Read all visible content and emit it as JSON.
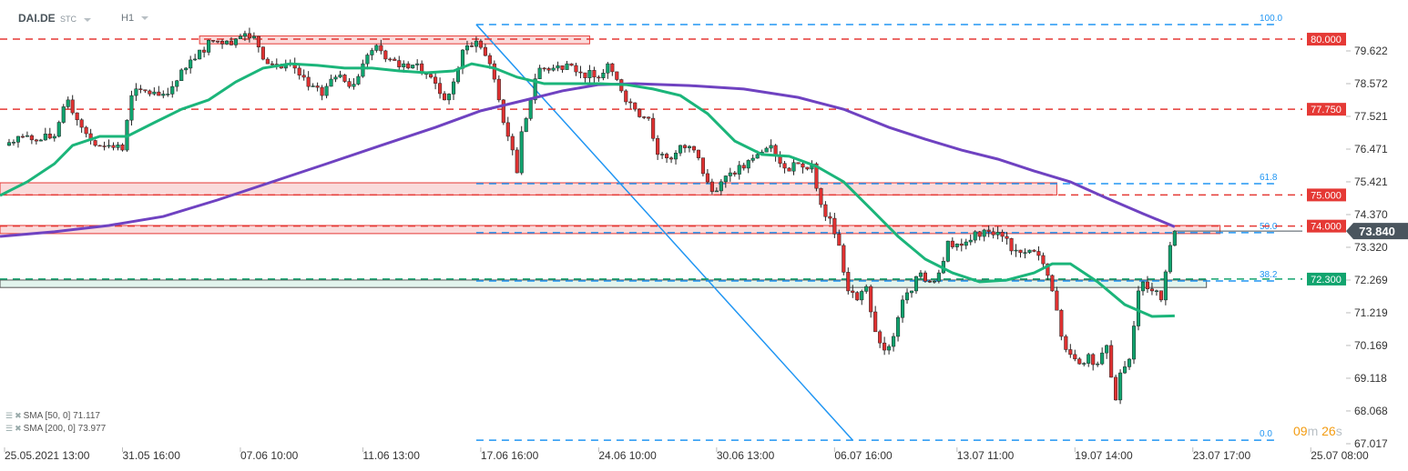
{
  "header": {
    "symbol": "DAI.DE",
    "type": "STC",
    "timeframe": "H1"
  },
  "timer": {
    "minutes": "09",
    "m": "m",
    "seconds": "26",
    "s": "s"
  },
  "legend": [
    {
      "label": "SMA [50,  0] 71.117",
      "color": "#1bb57a"
    },
    {
      "label": "SMA [200,  0] 73.977",
      "color": "#6f42c1"
    }
  ],
  "colors": {
    "up": "#10a36e",
    "down": "#e03131",
    "sma50": "#1bb57a",
    "sma200": "#6f42c1",
    "fib": "#2196f3",
    "resistance": "#e53935",
    "support": "#12a46e",
    "price_label": "#4a555e"
  },
  "chart_data": {
    "type": "candlestick",
    "x_unit": "bar (H1)",
    "ylim": [
      67.017,
      80.8
    ],
    "y_ticks": [
      "79.622",
      "78.572",
      "77.521",
      "76.471",
      "75.421",
      "74.370",
      "73.320",
      "72.269",
      "71.219",
      "70.169",
      "69.118",
      "68.068",
      "67.017"
    ],
    "x_ticks": [
      {
        "bar": 1,
        "label": "25.05.2021  13:00"
      },
      {
        "bar": 27,
        "label": "31.05  16:00"
      },
      {
        "bar": 53,
        "label": "07.06  10:00"
      },
      {
        "bar": 80,
        "label": "11.06  13:00"
      },
      {
        "bar": 106,
        "label": "17.06  16:00"
      },
      {
        "bar": 132,
        "label": "24.06  10:00"
      },
      {
        "bar": 158,
        "label": "30.06  13:00"
      },
      {
        "bar": 184,
        "label": "06.07  16:00"
      },
      {
        "bar": 211,
        "label": "13.07  11:00"
      },
      {
        "bar": 237,
        "label": "19.07  14:00"
      },
      {
        "bar": 263,
        "label": "23.07  17:00"
      },
      {
        "bar": 289,
        "label": "25.07  08:00"
      }
    ],
    "close_path": [
      [
        1,
        76.59
      ],
      [
        4,
        76.88
      ],
      [
        8,
        76.73
      ],
      [
        12,
        76.88
      ],
      [
        15,
        78.05
      ],
      [
        18,
        77.17
      ],
      [
        21,
        76.59
      ],
      [
        24,
        76.59
      ],
      [
        27,
        76.44
      ],
      [
        29,
        78.19
      ],
      [
        32,
        78.34
      ],
      [
        35,
        78.19
      ],
      [
        38,
        78.48
      ],
      [
        41,
        79.07
      ],
      [
        44,
        79.65
      ],
      [
        47,
        79.94
      ],
      [
        50,
        79.94
      ],
      [
        53,
        80.09
      ],
      [
        56,
        80.09
      ],
      [
        59,
        79.21
      ],
      [
        62,
        79.07
      ],
      [
        65,
        79.07
      ],
      [
        68,
        78.48
      ],
      [
        71,
        78.19
      ],
      [
        74,
        78.78
      ],
      [
        77,
        78.48
      ],
      [
        80,
        79.21
      ],
      [
        83,
        79.8
      ],
      [
        86,
        79.36
      ],
      [
        89,
        79.21
      ],
      [
        92,
        79.21
      ],
      [
        95,
        78.78
      ],
      [
        98,
        78.05
      ],
      [
        100,
        78.63
      ],
      [
        102,
        79.65
      ],
      [
        105,
        79.94
      ],
      [
        108,
        79.21
      ],
      [
        110,
        78.05
      ],
      [
        112,
        76.88
      ],
      [
        114,
        75.71
      ],
      [
        115,
        77.03
      ],
      [
        117,
        78.05
      ],
      [
        119,
        79.07
      ],
      [
        122,
        79.07
      ],
      [
        125,
        79.21
      ],
      [
        128,
        78.92
      ],
      [
        131,
        78.78
      ],
      [
        134,
        79.21
      ],
      [
        137,
        78.34
      ],
      [
        140,
        77.75
      ],
      [
        143,
        77.46
      ],
      [
        145,
        76.3
      ],
      [
        148,
        76.15
      ],
      [
        150,
        76.59
      ],
      [
        153,
        76.44
      ],
      [
        156,
        75.42
      ],
      [
        158,
        75.13
      ],
      [
        161,
        75.71
      ],
      [
        164,
        75.86
      ],
      [
        167,
        76.3
      ],
      [
        170,
        76.59
      ],
      [
        173,
        75.86
      ],
      [
        176,
        76.0
      ],
      [
        179,
        76.0
      ],
      [
        181,
        74.69
      ],
      [
        183,
        74.25
      ],
      [
        185,
        73.38
      ],
      [
        187,
        71.92
      ],
      [
        189,
        71.63
      ],
      [
        191,
        72.06
      ],
      [
        193,
        70.61
      ],
      [
        195,
        70.02
      ],
      [
        197,
        70.46
      ],
      [
        199,
        71.63
      ],
      [
        201,
        71.92
      ],
      [
        203,
        72.5
      ],
      [
        205,
        72.21
      ],
      [
        207,
        72.5
      ],
      [
        209,
        73.52
      ],
      [
        212,
        73.38
      ],
      [
        215,
        73.82
      ],
      [
        218,
        73.82
      ],
      [
        221,
        73.67
      ],
      [
        224,
        73.23
      ],
      [
        227,
        73.23
      ],
      [
        230,
        72.79
      ],
      [
        232,
        71.92
      ],
      [
        234,
        70.46
      ],
      [
        236,
        69.88
      ],
      [
        238,
        69.58
      ],
      [
        240,
        69.88
      ],
      [
        242,
        69.58
      ],
      [
        244,
        70.17
      ],
      [
        246,
        68.42
      ],
      [
        247,
        69.29
      ],
      [
        249,
        69.73
      ],
      [
        251,
        71.92
      ],
      [
        252,
        72.21
      ],
      [
        254,
        71.92
      ],
      [
        256,
        71.63
      ],
      [
        258,
        73.38
      ],
      [
        259,
        73.84
      ]
    ],
    "sma50": [
      [
        0,
        74.98
      ],
      [
        6,
        75.42
      ],
      [
        12,
        76.0
      ],
      [
        16,
        76.59
      ],
      [
        22,
        76.88
      ],
      [
        28,
        76.88
      ],
      [
        34,
        77.32
      ],
      [
        40,
        77.75
      ],
      [
        46,
        78.05
      ],
      [
        52,
        78.63
      ],
      [
        58,
        79.07
      ],
      [
        64,
        79.21
      ],
      [
        70,
        79.16
      ],
      [
        76,
        79.07
      ],
      [
        82,
        79.07
      ],
      [
        88,
        78.98
      ],
      [
        94,
        78.92
      ],
      [
        100,
        78.98
      ],
      [
        104,
        79.21
      ],
      [
        109,
        79.07
      ],
      [
        114,
        78.78
      ],
      [
        120,
        78.57
      ],
      [
        126,
        78.57
      ],
      [
        132,
        78.57
      ],
      [
        138,
        78.54
      ],
      [
        144,
        78.4
      ],
      [
        150,
        78.19
      ],
      [
        156,
        77.61
      ],
      [
        162,
        76.73
      ],
      [
        168,
        76.3
      ],
      [
        174,
        76.24
      ],
      [
        180,
        75.92
      ],
      [
        186,
        75.42
      ],
      [
        192,
        74.55
      ],
      [
        198,
        73.67
      ],
      [
        204,
        72.94
      ],
      [
        210,
        72.5
      ],
      [
        216,
        72.21
      ],
      [
        222,
        72.27
      ],
      [
        228,
        72.5
      ],
      [
        232,
        72.79
      ],
      [
        236,
        72.79
      ],
      [
        242,
        72.21
      ],
      [
        248,
        71.48
      ],
      [
        254,
        71.1
      ],
      [
        259,
        71.12
      ]
    ],
    "sma200": [
      [
        0,
        73.67
      ],
      [
        12,
        73.82
      ],
      [
        24,
        74.02
      ],
      [
        36,
        74.31
      ],
      [
        48,
        74.84
      ],
      [
        60,
        75.42
      ],
      [
        72,
        76.0
      ],
      [
        84,
        76.59
      ],
      [
        96,
        77.17
      ],
      [
        106,
        77.7
      ],
      [
        116,
        78.05
      ],
      [
        124,
        78.34
      ],
      [
        132,
        78.54
      ],
      [
        140,
        78.57
      ],
      [
        152,
        78.51
      ],
      [
        164,
        78.4
      ],
      [
        176,
        78.13
      ],
      [
        186,
        77.75
      ],
      [
        196,
        77.17
      ],
      [
        204,
        76.79
      ],
      [
        212,
        76.44
      ],
      [
        220,
        76.15
      ],
      [
        228,
        75.77
      ],
      [
        236,
        75.42
      ],
      [
        244,
        74.9
      ],
      [
        252,
        74.4
      ],
      [
        259,
        73.98
      ]
    ],
    "horizontal_levels": [
      {
        "value": 80.0,
        "label": "80.000",
        "kind": "resistance"
      },
      {
        "value": 77.75,
        "label": "77.750",
        "kind": "resistance"
      },
      {
        "value": 75.0,
        "label": "75.000",
        "kind": "resistance"
      },
      {
        "value": 74.0,
        "label": "74.000",
        "kind": "resistance"
      },
      {
        "value": 72.3,
        "label": "72.300",
        "kind": "support"
      }
    ],
    "zones": [
      {
        "from_bar": 44,
        "to_bar": 130,
        "low": 79.85,
        "high": 80.1,
        "kind": "resistance"
      },
      {
        "from_bar": 0,
        "to_bar": 233,
        "low": 75.0,
        "high": 75.39,
        "kind": "resistance"
      },
      {
        "from_bar": 0,
        "to_bar": 269,
        "low": 73.76,
        "high": 74.02,
        "kind": "resistance"
      },
      {
        "from_bar": 0,
        "to_bar": 266,
        "low": 72.03,
        "high": 72.27,
        "kind": "support"
      }
    ],
    "fibonacci": {
      "from_bar": 105,
      "to_bar": 282,
      "levels": [
        {
          "label": "100.0",
          "value": 80.47
        },
        {
          "label": "61.8",
          "value": 75.36
        },
        {
          "label": "50.0",
          "value": 73.79
        },
        {
          "label": "38.2",
          "value": 72.24
        },
        {
          "label": "0.0",
          "value": 67.13
        }
      ]
    },
    "trendline": [
      [
        105,
        80.47
      ],
      [
        188,
        67.13
      ]
    ],
    "last_price": {
      "value": 73.84,
      "label": "73.840"
    }
  }
}
